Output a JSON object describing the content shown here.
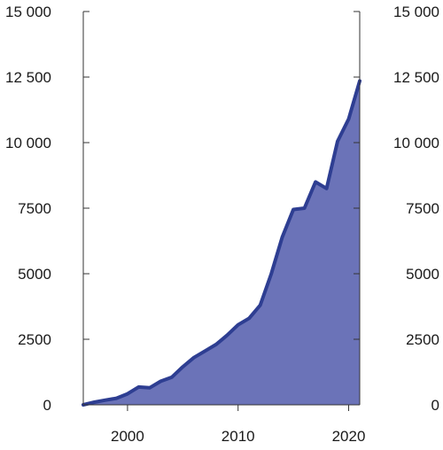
{
  "chart_data": {
    "type": "area",
    "title": "",
    "xlabel": "",
    "ylabel": "",
    "x": [
      1996,
      1997,
      1998,
      1999,
      2000,
      2001,
      2002,
      2003,
      2004,
      2005,
      2006,
      2007,
      2008,
      2009,
      2010,
      2011,
      2012,
      2013,
      2014,
      2015,
      2016,
      2017,
      2018,
      2019,
      2020,
      2021
    ],
    "series": [
      {
        "values": [
          0,
          100,
          180,
          250,
          420,
          680,
          650,
          900,
          1050,
          1450,
          1800,
          2050,
          2300,
          2650,
          3050,
          3300,
          3800,
          5000,
          6400,
          7450,
          7500,
          8500,
          8250,
          10050,
          10900,
          12350
        ]
      }
    ],
    "xlim": [
      1996,
      2021
    ],
    "ylim": [
      0,
      15000
    ],
    "x_ticks": [
      {
        "value": 2000,
        "label": "2000"
      },
      {
        "value": 2010,
        "label": "2010"
      },
      {
        "value": 2020,
        "label": "2020"
      }
    ],
    "y_ticks": [
      {
        "value": 0,
        "label": "0"
      },
      {
        "value": 2500,
        "label": "2500"
      },
      {
        "value": 5000,
        "label": "5000"
      },
      {
        "value": 7500,
        "label": "7500"
      },
      {
        "value": 10000,
        "label": "10 000"
      },
      {
        "value": 12500,
        "label": "12 500"
      },
      {
        "value": 15000,
        "label": "15 000"
      }
    ],
    "dual_y_axis_labels": true,
    "grid": false,
    "legend": "none",
    "colors": {
      "fill": "#6b73b8",
      "line": "#2e3e92",
      "axis": "#333333",
      "text": "#1a1a1a"
    }
  }
}
